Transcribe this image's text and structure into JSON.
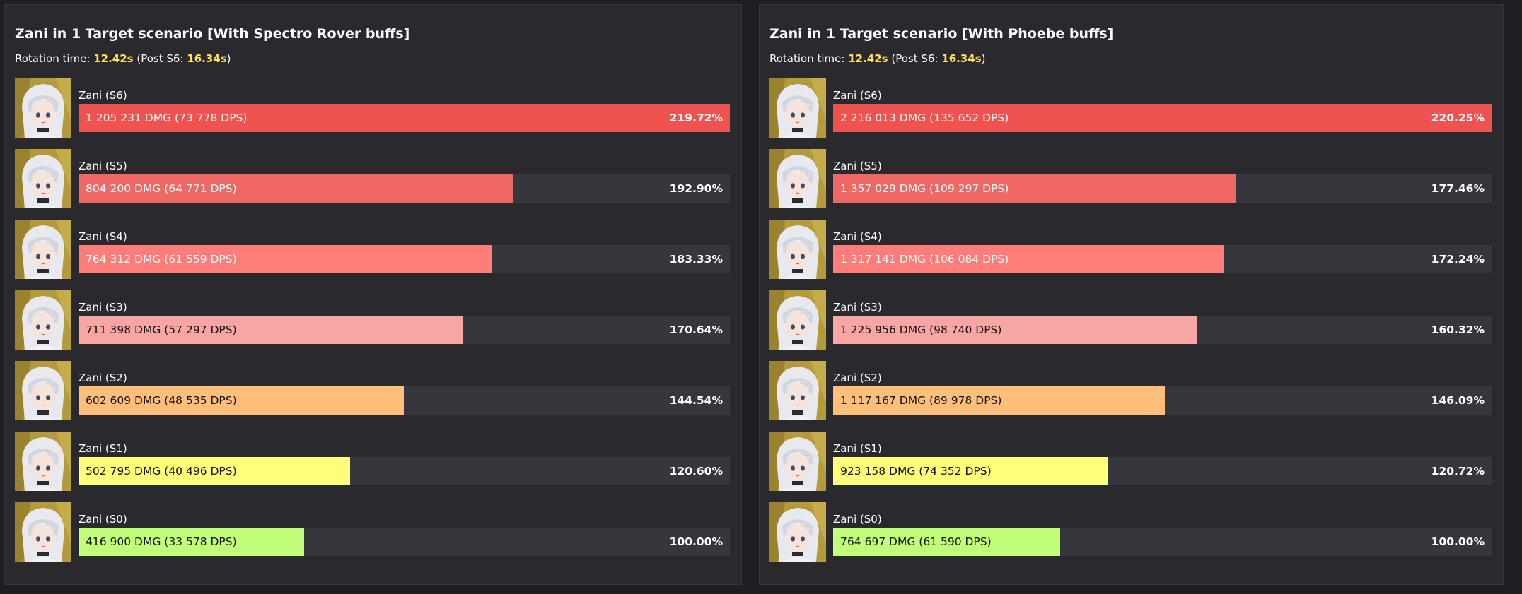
{
  "chart_data": [
    {
      "type": "bar",
      "title": "Zani in 1 Target scenario [With Spectro Rover buffs]",
      "rotation": {
        "prefix": "Rotation time: ",
        "time": "12.42s",
        "post_prefix": " (Post S6: ",
        "post_time": "16.34s",
        "suffix": ")"
      },
      "categories": [
        "Zani (S6)",
        "Zani (S5)",
        "Zani (S4)",
        "Zani (S3)",
        "Zani (S2)",
        "Zani (S1)",
        "Zani (S0)"
      ],
      "dmg": [
        1205231,
        804200,
        764312,
        711398,
        602609,
        502795,
        416900
      ],
      "labels": [
        "1 205 231 DMG (73 778 DPS)",
        "804 200 DMG (64 771 DPS)",
        "764 312 DMG (61 559 DPS)",
        "711 398 DMG (57 297 DPS)",
        "602 609 DMG (48 535 DPS)",
        "502 795 DMG (40 496 DPS)",
        "416 900 DMG (33 578 DPS)"
      ],
      "percents": [
        "219.72%",
        "192.90%",
        "183.33%",
        "170.64%",
        "144.54%",
        "120.60%",
        "100.00%"
      ],
      "xlim": [
        0,
        1205231
      ]
    },
    {
      "type": "bar",
      "title": "Zani in 1 Target scenario [With Phoebe buffs]",
      "rotation": {
        "prefix": "Rotation time: ",
        "time": "12.42s",
        "post_prefix": " (Post S6: ",
        "post_time": "16.34s",
        "suffix": ")"
      },
      "categories": [
        "Zani (S6)",
        "Zani (S5)",
        "Zani (S4)",
        "Zani (S3)",
        "Zani (S2)",
        "Zani (S1)",
        "Zani (S0)"
      ],
      "dmg": [
        2216013,
        1357029,
        1317141,
        1225956,
        1117167,
        923158,
        764697
      ],
      "labels": [
        "2 216 013 DMG (135 652 DPS)",
        "1 357 029 DMG (109 297 DPS)",
        "1 317 141 DMG (106 084 DPS)",
        "1 225 956 DMG (98 740 DPS)",
        "1 117 167 DMG (89 978 DPS)",
        "923 158 DMG (74 352 DPS)",
        "764 697 DMG (61 590 DPS)"
      ],
      "percents": [
        "220.25%",
        "177.46%",
        "172.24%",
        "160.32%",
        "146.09%",
        "120.72%",
        "100.00%"
      ],
      "xlim": [
        0,
        2216013
      ]
    }
  ],
  "bar_colors": [
    "#ef5350",
    "#ee6866",
    "#ff7d79",
    "#f8a6a4",
    "#ffbe7a",
    "#ffff7a",
    "#c1ff7a"
  ],
  "label_colors": [
    "#ffffff",
    "#ffffff",
    "#ffffff",
    "#111111",
    "#111111",
    "#111111",
    "#111111"
  ],
  "avatar_icon": "zani-portrait-icon"
}
